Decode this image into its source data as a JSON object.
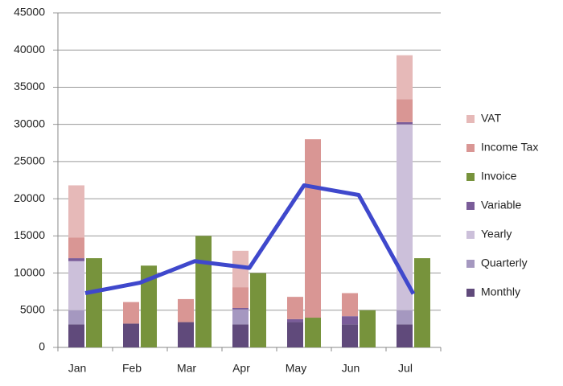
{
  "chart_data": {
    "type": "stacked-bar-line",
    "categories": [
      "Jan",
      "Feb",
      "Mar",
      "Apr",
      "May",
      "Jun",
      "Jul"
    ],
    "series": [
      {
        "name": "VAT",
        "color": "#e6b9b8",
        "stack": "left",
        "values": [
          7000,
          null,
          null,
          4900,
          null,
          null,
          5900
        ]
      },
      {
        "name": "Income Tax",
        "color": "#d99694",
        "stack": "left",
        "values": [
          2800,
          2900,
          3100,
          2800,
          3000,
          3100,
          3100
        ],
        "right_stack_values": [
          null,
          null,
          null,
          null,
          24000,
          null,
          null
        ]
      },
      {
        "name": "Invoice",
        "color": "#77933c",
        "stack": "right",
        "values": [
          12000,
          11000,
          15000,
          10000,
          4000,
          5000,
          12000
        ]
      },
      {
        "name": "Variable",
        "color": "#7a5c99",
        "stack": "left",
        "values": [
          400,
          null,
          null,
          200,
          400,
          1100,
          300
        ]
      },
      {
        "name": "Yearly",
        "color": "#ccc0da",
        "stack": "left",
        "values": [
          6600,
          null,
          null,
          null,
          null,
          null,
          25000
        ]
      },
      {
        "name": "Quarterly",
        "color": "#a598c0",
        "stack": "left",
        "values": [
          1900,
          null,
          null,
          2000,
          null,
          null,
          1900
        ]
      },
      {
        "name": "Monthly",
        "color": "#604a7b",
        "stack": "left",
        "values": [
          3100,
          3200,
          3400,
          3100,
          3400,
          3100,
          3100
        ]
      }
    ],
    "line": {
      "color": "#3f48cc",
      "values": [
        7300,
        8700,
        11600,
        10700,
        21800,
        20500,
        7200
      ]
    },
    "ylim": [
      0,
      45000
    ],
    "yticks": [
      0,
      5000,
      10000,
      15000,
      20000,
      25000,
      30000,
      35000,
      40000,
      45000
    ],
    "grid": true,
    "legend": "right"
  }
}
